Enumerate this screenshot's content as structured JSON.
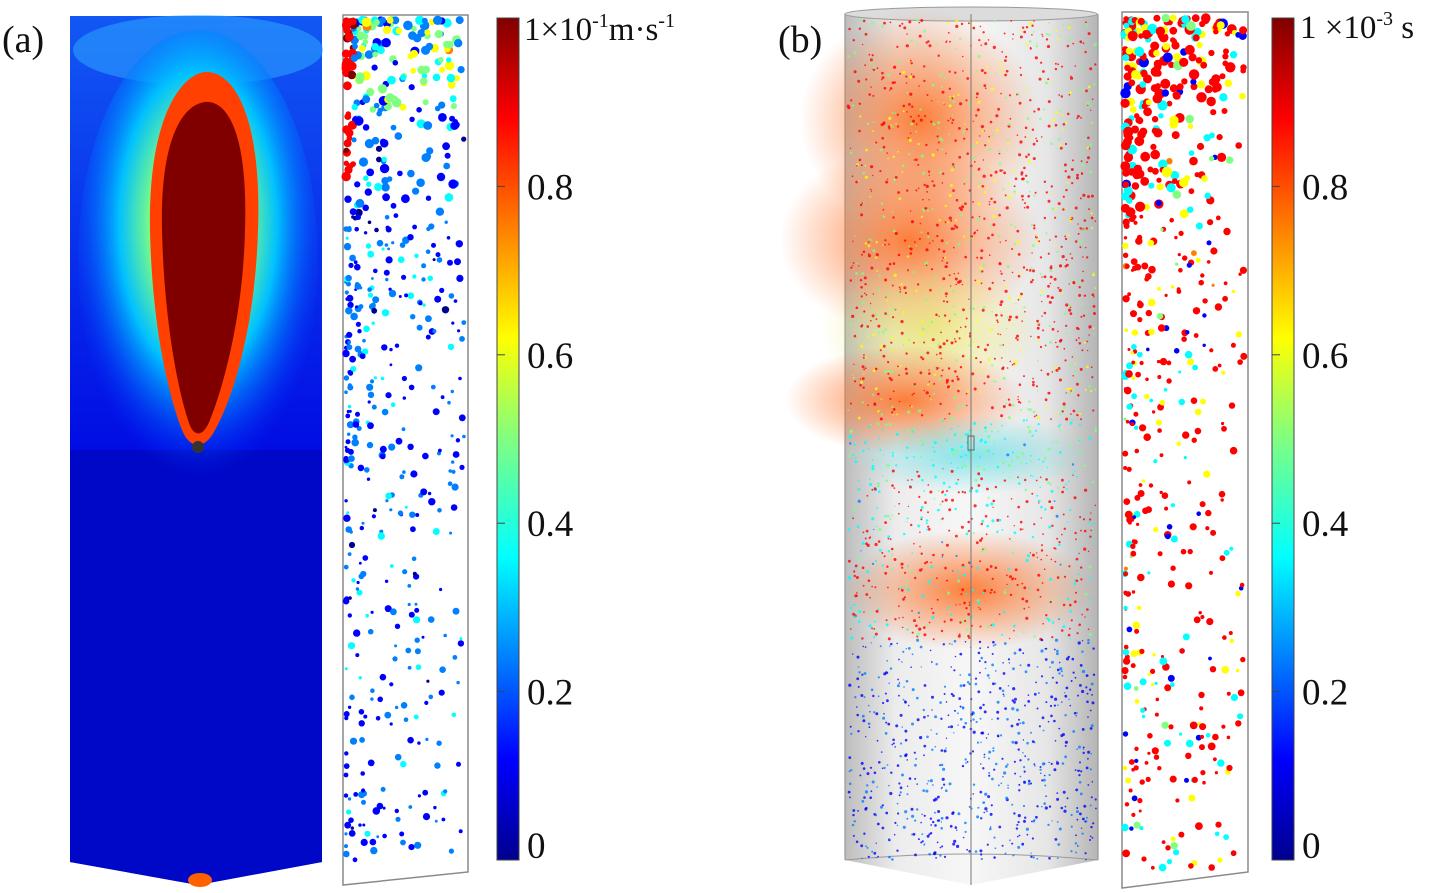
{
  "panels": [
    {
      "label": "(a)",
      "colorbar": {
        "title_base": "1×10",
        "title_exp": "-1",
        "title_unit": "m·s",
        "title_unit_exp": "-1",
        "ticks": [
          "0",
          "0.2",
          "0.4",
          "0.6",
          "0.8"
        ]
      }
    },
    {
      "label": "(b)",
      "colorbar": {
        "title_base": "1 ×10",
        "title_exp": "-3",
        "title_unit": " s",
        "ticks": [
          "0",
          "0.2",
          "0.4",
          "0.6",
          "0.8"
        ]
      }
    }
  ],
  "colormap": [
    "#00008f",
    "#0000ff",
    "#0080ff",
    "#00ffff",
    "#80ff80",
    "#ffff00",
    "#ff8000",
    "#ff0000",
    "#800000"
  ]
}
